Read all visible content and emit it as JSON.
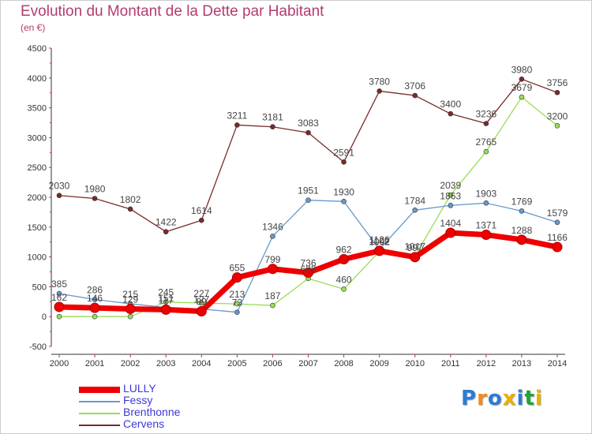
{
  "header": {
    "title": "Evolution du Montant de la Dette par Habitant",
    "subtitle": "(en €)"
  },
  "logo": {
    "text": "Proxiti",
    "colors": [
      "#2b7bd6",
      "#f08a1c",
      "#2b7bd6",
      "#e8b100",
      "#2b7bd6",
      "#22a33a",
      "#e8b100"
    ]
  },
  "chart_data": {
    "type": "line",
    "x": [
      2000,
      2001,
      2002,
      2003,
      2004,
      2005,
      2006,
      2007,
      2008,
      2009,
      2010,
      2011,
      2012,
      2013,
      2014
    ],
    "ylim": [
      -500,
      4500
    ],
    "yticks": [
      -500,
      0,
      500,
      1000,
      1500,
      2000,
      2500,
      3000,
      3500,
      4000,
      4500
    ],
    "grid": false,
    "legend_position": "bottom-left",
    "series": [
      {
        "name": "LULLY",
        "color": "#ee0000",
        "values": [
          162,
          146,
          129,
          117,
          89,
          655,
          799,
          736,
          962,
          1102,
          997,
          1404,
          1371,
          1288,
          1166
        ],
        "labels": [
          "162",
          "146",
          "129",
          "117",
          "89",
          "655",
          "799",
          "736",
          "962",
          "1102",
          "997",
          "1404",
          "1371",
          "1288",
          "1166"
        ]
      },
      {
        "name": "Fessy",
        "color": "#6699cc",
        "values": [
          385,
          286,
          215,
          151,
          127,
          73,
          1346,
          1951,
          1930,
          1126,
          1784,
          1863,
          1903,
          1769,
          1579
        ],
        "labels": [
          "385",
          "286",
          "215",
          "151",
          "127",
          "73",
          "1346",
          "1951",
          "1930",
          "1126",
          "1784",
          "1863",
          "1903",
          "1769",
          "1579"
        ]
      },
      {
        "name": "Brenthonne",
        "color": "#99dd55",
        "values": [
          0,
          0,
          0,
          245,
          227,
          213,
          187,
          638,
          460,
          1092,
          1017,
          2039,
          2765,
          3679,
          3200
        ],
        "labels": [
          "",
          "",
          "",
          "245",
          "227",
          "213",
          "187",
          "638",
          "460",
          "1092",
          "1017",
          "2039",
          "2765",
          "3679",
          "3200"
        ]
      },
      {
        "name": "Cervens",
        "color": "#7a2a2a",
        "values": [
          2030,
          1980,
          1802,
          1422,
          1614,
          3211,
          3181,
          3083,
          2591,
          3780,
          3706,
          3400,
          3236,
          3980,
          3756
        ],
        "labels": [
          "2030",
          "1980",
          "1802",
          "1422",
          "1614",
          "3211",
          "3181",
          "3083",
          "2591",
          "3780",
          "3706",
          "3400",
          "3236",
          "3980",
          "3756"
        ]
      }
    ]
  }
}
